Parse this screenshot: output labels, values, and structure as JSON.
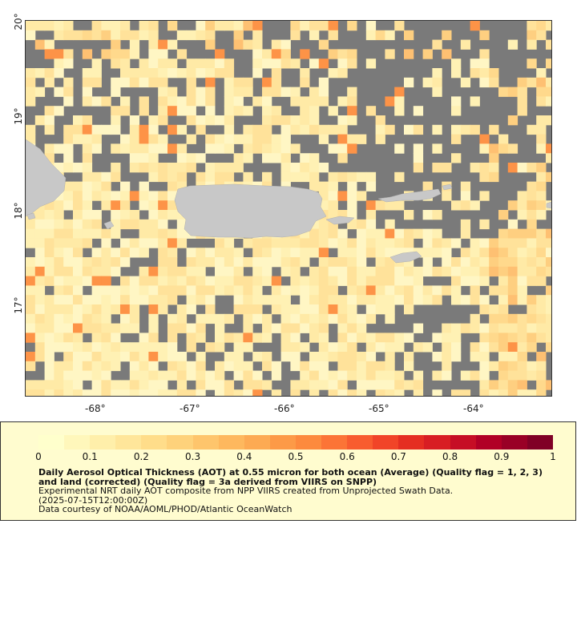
{
  "map": {
    "lat_ticks": [
      "20°",
      "19°",
      "18°",
      "17°"
    ],
    "lon_ticks": [
      "-68°",
      "-67°",
      "-66°",
      "-65°",
      "-64°"
    ],
    "land_color": "#c8c8c8",
    "nodata_color": "#7a7a7a"
  },
  "legend": {
    "ticks": [
      "0",
      "0.1",
      "0.2",
      "0.3",
      "0.4",
      "0.5",
      "0.6",
      "0.7",
      "0.8",
      "0.9",
      "1"
    ],
    "title": "Daily Aerosol Optical Thickness (AOT) at 0.55 micron for both ocean (Average) (Quality flag = 1, 2, 3) and land (corrected) (Quality flag = 3a derived from VIIRS on SNPP)",
    "line1": "Experimental NRT daily AOT composite from NPP VIIRS created from Unprojected Swath Data.",
    "line2": "(2025-07-15T12:00:00Z)",
    "line3": "Data courtesy of NOAA/AOML/PHOD/Atlantic OceanWatch",
    "colors": [
      "#ffffcc",
      "#fff7bb",
      "#ffefaa",
      "#ffe69a",
      "#ffdd8a",
      "#fed27b",
      "#fec56c",
      "#feb85e",
      "#fdaa53",
      "#fd9a47",
      "#fd8a3e",
      "#fc7436",
      "#f85c2f",
      "#f14428",
      "#e52e22",
      "#d81e23",
      "#c60e25",
      "#b10026",
      "#990026",
      "#800026"
    ]
  }
}
